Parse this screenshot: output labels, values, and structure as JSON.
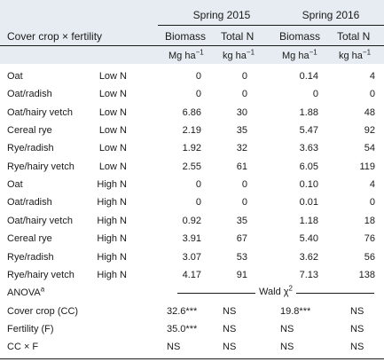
{
  "header": {
    "row_label": "Cover crop × fertility",
    "groups": [
      "Spring 2015",
      "Spring 2016"
    ],
    "columns": [
      "Biomass",
      "Total N",
      "Biomass",
      "Total N"
    ],
    "units": [
      {
        "base": "Mg ha",
        "sup": "−1"
      },
      {
        "base": "kg ha",
        "sup": "−1"
      },
      {
        "base": "Mg ha",
        "sup": "−1"
      },
      {
        "base": "kg ha",
        "sup": "−1"
      }
    ]
  },
  "rows": [
    {
      "name": "Oat",
      "fert": "Low N",
      "b15": "0",
      "n15": "0",
      "b16": "0.14",
      "n16": "4"
    },
    {
      "name": "Oat/radish",
      "fert": "Low N",
      "b15": "0",
      "n15": "0",
      "b16": "0",
      "n16": "0"
    },
    {
      "name": "Oat/hairy vetch",
      "fert": "Low N",
      "b15": "6.86",
      "n15": "30",
      "b16": "1.88",
      "n16": "48"
    },
    {
      "name": "Cereal rye",
      "fert": "Low N",
      "b15": "2.19",
      "n15": "35",
      "b16": "5.47",
      "n16": "92"
    },
    {
      "name": "Rye/radish",
      "fert": "Low N",
      "b15": "1.92",
      "n15": "32",
      "b16": "3.63",
      "n16": "54"
    },
    {
      "name": "Rye/hairy vetch",
      "fert": "Low N",
      "b15": "2.55",
      "n15": "61",
      "b16": "6.05",
      "n16": "119"
    },
    {
      "name": "Oat",
      "fert": "High N",
      "b15": "0",
      "n15": "0",
      "b16": "0.10",
      "n16": "4"
    },
    {
      "name": "Oat/radish",
      "fert": "High N",
      "b15": "0",
      "n15": "0",
      "b16": "0.01",
      "n16": "0"
    },
    {
      "name": "Oat/hairy vetch",
      "fert": "High N",
      "b15": "0.92",
      "n15": "35",
      "b16": "1.18",
      "n16": "18"
    },
    {
      "name": "Cereal rye",
      "fert": "High N",
      "b15": "3.91",
      "n15": "67",
      "b16": "5.40",
      "n16": "76"
    },
    {
      "name": "Rye/radish",
      "fert": "High N",
      "b15": "3.07",
      "n15": "53",
      "b16": "3.62",
      "n16": "56"
    },
    {
      "name": "Rye/hairy vetch",
      "fert": "High N",
      "b15": "4.17",
      "n15": "91",
      "b16": "7.13",
      "n16": "138"
    }
  ],
  "anova": {
    "label": "ANOVA",
    "label_sup": "a",
    "wald_label": "Wald χ",
    "wald_sup": "2"
  },
  "anova_rows": [
    {
      "name": "Cover crop (CC)",
      "b15": "32.6***",
      "n15": "NS",
      "b16": "19.8***",
      "n16": "NS"
    },
    {
      "name": "Fertility (F)",
      "b15": "35.0***",
      "n15": "NS",
      "b16": "NS",
      "n16": "NS"
    },
    {
      "name": "CC × F",
      "b15": "NS",
      "n15": "NS",
      "b16": "NS",
      "n16": "NS"
    }
  ],
  "colors": {
    "header_bg": "#e6ecf2",
    "text": "#1a1a1a"
  }
}
